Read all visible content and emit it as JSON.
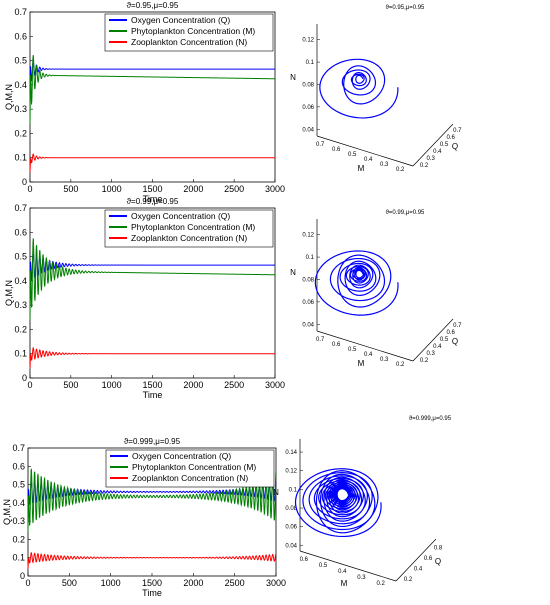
{
  "chart_data": [
    {
      "type": "line",
      "title": "ϑ=0.95,μ=0.95",
      "xlabel": "Time",
      "ylabel": "Q,M,N",
      "xlim": [
        0,
        3000
      ],
      "ylim": [
        0,
        0.7
      ],
      "xticks": [
        "0",
        "500",
        "1000",
        "1500",
        "2000",
        "2500",
        "3000"
      ],
      "yticks": [
        "0",
        "0.1",
        "0.2",
        "0.3",
        "0.4",
        "0.5",
        "0.6",
        "0.7"
      ],
      "legend_position": "top-right",
      "series": [
        {
          "name": "Oxygen Concentration (Q)",
          "color": "#0000ff",
          "start": 0.44,
          "steady": 0.465,
          "amp0": 0.07,
          "tau": 55,
          "period": 40,
          "tail_amp": 0,
          "drift": 0
        },
        {
          "name": "Phytoplankton Concentration (M)",
          "color": "#008000",
          "start": 0.24,
          "steady": 0.44,
          "amp0": 0.17,
          "tau": 55,
          "period": 40,
          "tail_amp": 0,
          "drift": -0.015
        },
        {
          "name": "Zooplankton Concentration (N)",
          "color": "#ff0000",
          "start": 0.04,
          "steady": 0.1,
          "amp0": 0.03,
          "tau": 55,
          "period": 40,
          "tail_amp": 0,
          "drift": 0
        }
      ]
    },
    {
      "type": "line",
      "title": "ϑ=0.99,μ=0.95",
      "xlabel": "Time",
      "ylabel": "Q,M,N",
      "xlim": [
        0,
        3000
      ],
      "ylim": [
        0,
        0.7
      ],
      "xticks": [
        "0",
        "500",
        "1000",
        "1500",
        "2000",
        "2500",
        "3000"
      ],
      "yticks": [
        "0",
        "0.1",
        "0.2",
        "0.3",
        "0.4",
        "0.5",
        "0.6",
        "0.7"
      ],
      "legend_position": "top-right",
      "series": [
        {
          "name": "Oxygen Concentration (Q)",
          "color": "#0000ff",
          "start": 0.44,
          "steady": 0.465,
          "amp0": 0.07,
          "tau": 180,
          "period": 40,
          "tail_amp": 0,
          "drift": 0
        },
        {
          "name": "Phytoplankton Concentration (M)",
          "color": "#008000",
          "start": 0.24,
          "steady": 0.44,
          "amp0": 0.17,
          "tau": 180,
          "period": 40,
          "tail_amp": 0,
          "drift": -0.015
        },
        {
          "name": "Zooplankton Concentration (N)",
          "color": "#ff0000",
          "start": 0.04,
          "steady": 0.1,
          "amp0": 0.03,
          "tau": 180,
          "period": 40,
          "tail_amp": 0,
          "drift": 0
        }
      ]
    },
    {
      "type": "line",
      "title": "ϑ=0.999,μ=0.95",
      "xlabel": "Time",
      "ylabel": "Q,M,N",
      "xlim": [
        0,
        3000
      ],
      "ylim": [
        0,
        0.7
      ],
      "xticks": [
        "0",
        "500",
        "1000",
        "1500",
        "2000",
        "2500",
        "3000"
      ],
      "yticks": [
        "0",
        "0.1",
        "0.2",
        "0.3",
        "0.4",
        "0.5",
        "0.6",
        "0.7"
      ],
      "legend_position": "top-right",
      "series": [
        {
          "name": "Oxygen Concentration (Q)",
          "color": "#0000ff",
          "start": 0.44,
          "steady": 0.46,
          "amp0": 0.07,
          "tau": 380,
          "period": 40,
          "tail_amp": 0.05,
          "drift": 0
        },
        {
          "name": "Phytoplankton Concentration (M)",
          "color": "#008000",
          "start": 0.24,
          "steady": 0.435,
          "amp0": 0.17,
          "tau": 380,
          "period": 40,
          "tail_amp": 0.14,
          "drift": 0
        },
        {
          "name": "Zooplankton Concentration (N)",
          "color": "#ff0000",
          "start": 0.04,
          "steady": 0.1,
          "amp0": 0.03,
          "tau": 380,
          "period": 40,
          "tail_amp": 0.02,
          "drift": 0
        }
      ]
    },
    {
      "type": "line3d",
      "title": "ϑ=0.95,μ=0.95",
      "xlabel": "M",
      "ylabel": "Q",
      "zlabel": "N",
      "xticks": [
        "0.7",
        "0.6",
        "0.5",
        "0.4",
        "0.3",
        "0.2"
      ],
      "yticks": [
        "0.2",
        "0.3",
        "0.4",
        "0.5",
        "0.6",
        "0.7"
      ],
      "zticks": [
        "0.04",
        "0.06",
        "0.08",
        "0.1",
        "0.12"
      ],
      "color": "#0000ff",
      "turns": 6,
      "decay": 0.45
    },
    {
      "type": "line3d",
      "title": "ϑ=0.99,μ=0.95",
      "xlabel": "M",
      "ylabel": "Q",
      "zlabel": "N",
      "xticks": [
        "0.7",
        "0.6",
        "0.5",
        "0.4",
        "0.3",
        "0.2"
      ],
      "yticks": [
        "0.2",
        "0.3",
        "0.4",
        "0.5",
        "0.6",
        "0.7"
      ],
      "zticks": [
        "0.04",
        "0.06",
        "0.08",
        "0.1",
        "0.12"
      ],
      "color": "#0000ff",
      "turns": 12,
      "decay": 0.22
    },
    {
      "type": "line3d",
      "title": "ϑ=0.999,μ=0.95",
      "xlabel": "M",
      "ylabel": "Q",
      "zlabel": "N",
      "xticks": [
        "0.6",
        "0.5",
        "0.4",
        "0.3",
        "0.2"
      ],
      "yticks": [
        "0.2",
        "0.4",
        "0.6",
        "0.8"
      ],
      "zticks": [
        "0.04",
        "0.06",
        "0.08",
        "0.1",
        "0.12",
        "0.14"
      ],
      "color": "#0000ff",
      "turns": 22,
      "decay": 0.09
    }
  ]
}
